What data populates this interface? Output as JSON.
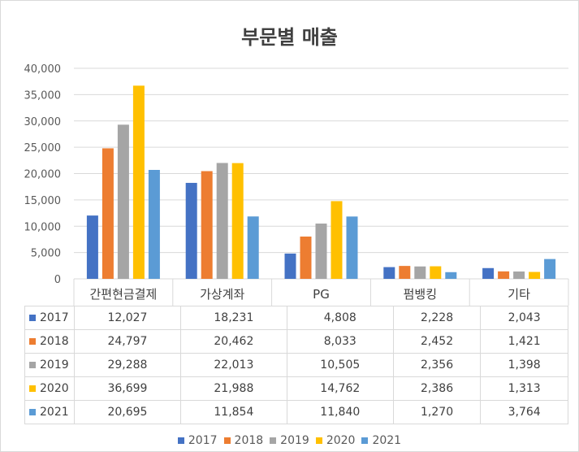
{
  "chart_data": {
    "type": "bar",
    "title": "부문별 매출",
    "categories": [
      "간편현금결제",
      "가상계좌",
      "PG",
      "펌뱅킹",
      "기타"
    ],
    "series": [
      {
        "name": "2017",
        "color": "#4472c4",
        "values": [
          12027,
          18231,
          4808,
          2228,
          2043
        ]
      },
      {
        "name": "2018",
        "color": "#ed7d31",
        "values": [
          24797,
          20462,
          8033,
          2452,
          1421
        ]
      },
      {
        "name": "2019",
        "color": "#a5a5a5",
        "values": [
          29288,
          22013,
          10505,
          2356,
          1398
        ]
      },
      {
        "name": "2020",
        "color": "#ffc000",
        "values": [
          36699,
          21988,
          14762,
          2386,
          1313
        ]
      },
      {
        "name": "2021",
        "color": "#5b9bd5",
        "values": [
          20695,
          11854,
          11840,
          1270,
          3764
        ]
      }
    ],
    "ylim": [
      0,
      40000
    ],
    "yticks": [
      0,
      5000,
      10000,
      15000,
      20000,
      25000,
      30000,
      35000,
      40000
    ],
    "ytick_labels": [
      "0",
      "5,000",
      "10,000",
      "15,000",
      "20,000",
      "25,000",
      "30,000",
      "35,000",
      "40,000"
    ],
    "grid": true,
    "legend": "bottom",
    "table": {
      "rows": [
        {
          "label": "2017",
          "cells": [
            "12,027",
            "18,231",
            "4,808",
            "2,228",
            "2,043"
          ]
        },
        {
          "label": "2018",
          "cells": [
            "24,797",
            "20,462",
            "8,033",
            "2,452",
            "1,421"
          ]
        },
        {
          "label": "2019",
          "cells": [
            "29,288",
            "22,013",
            "10,505",
            "2,356",
            "1,398"
          ]
        },
        {
          "label": "2020",
          "cells": [
            "36,699",
            "21,988",
            "14,762",
            "2,386",
            "1,313"
          ]
        },
        {
          "label": "2021",
          "cells": [
            "20,695",
            "11,854",
            "11,840",
            "1,270",
            "3,764"
          ]
        }
      ]
    }
  }
}
